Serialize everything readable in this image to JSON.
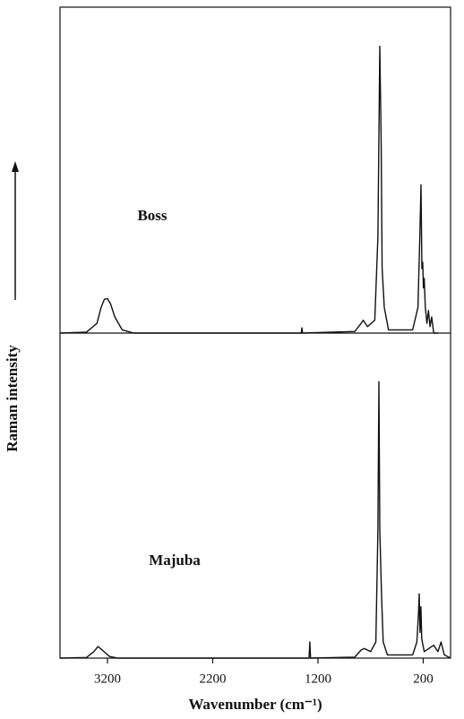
{
  "chart_data": [
    {
      "type": "line",
      "label": "Boss",
      "color": "#111111",
      "x": [
        3651,
        3400,
        3300,
        3260,
        3230,
        3200,
        3170,
        3130,
        3060,
        2950,
        1360,
        1353,
        1346,
        850,
        790,
        770,
        730,
        660,
        630,
        612,
        600,
        590,
        570,
        530,
        300,
        250,
        232,
        221,
        212,
        205,
        198,
        190,
        180,
        165,
        150,
        135,
        120,
        100,
        60
      ],
      "values": [
        0,
        0.3,
        3,
        8,
        10.5,
        10.7,
        9,
        5,
        1,
        0,
        0,
        1.6,
        0,
        0.5,
        3,
        4,
        2,
        4,
        30,
        89,
        60,
        20,
        8,
        1,
        1,
        8,
        30,
        46,
        20,
        22,
        14,
        17,
        8,
        3,
        7,
        2,
        5,
        0,
        0
      ],
      "xlim": [
        3651,
        -60
      ],
      "ylim": [
        0,
        100
      ],
      "ylabel": "Raman intensity"
    },
    {
      "type": "line",
      "label": "Majuba",
      "color": "#111111",
      "x": [
        3651,
        3400,
        3330,
        3290,
        3250,
        3180,
        3100,
        1285,
        1277,
        1270,
        850,
        790,
        760,
        700,
        650,
        630,
        621,
        612,
        595,
        580,
        540,
        300,
        260,
        245,
        238,
        230,
        222,
        214,
        190,
        100,
        60,
        30,
        0,
        -60
      ],
      "values": [
        0,
        0.2,
        2,
        3.6,
        2.5,
        0.5,
        0,
        0,
        5,
        0,
        0.3,
        2.5,
        3,
        2,
        5,
        40,
        86,
        40,
        19,
        5,
        1,
        1,
        5,
        14,
        20,
        8,
        16,
        6,
        2,
        4,
        2,
        5,
        1,
        0
      ],
      "xlim": [
        3651,
        -60
      ],
      "ylim": [
        0,
        100
      ],
      "xticks": [
        3200,
        2200,
        1200,
        200
      ],
      "xlabel": "Wavenumber (cm⁻¹)"
    }
  ]
}
